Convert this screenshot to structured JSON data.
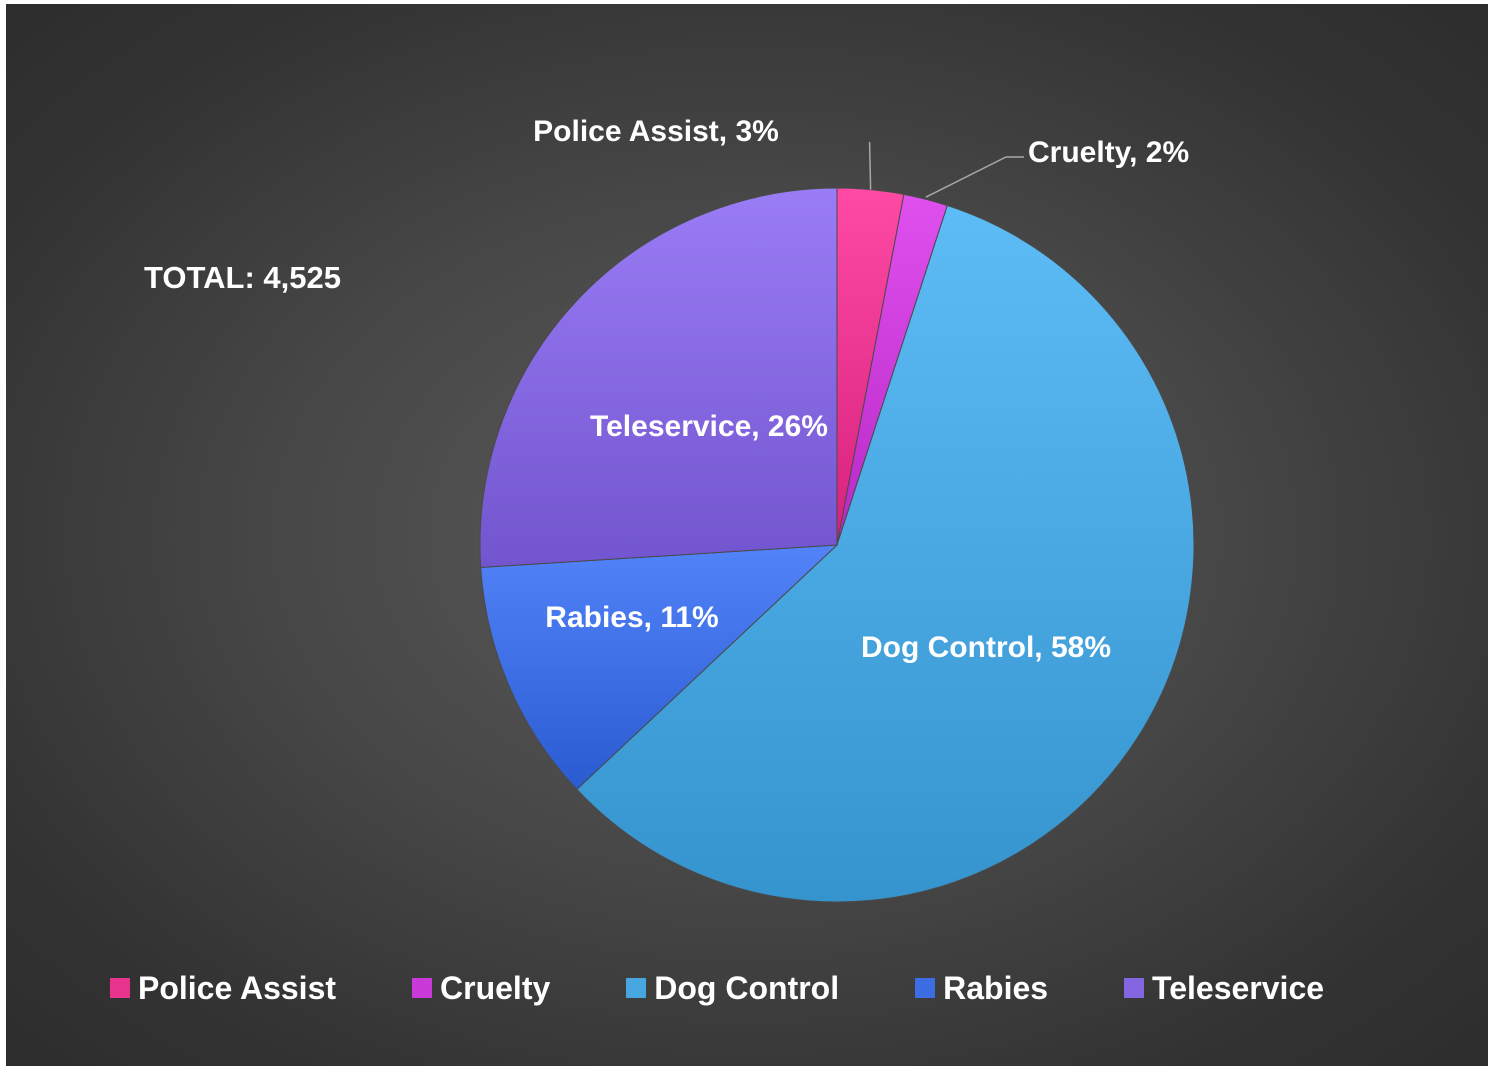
{
  "chart_data": {
    "type": "pie",
    "title": "",
    "annotation": "TOTAL: 4,525",
    "categories": [
      "Police Assist",
      "Cruelty",
      "Dog Control",
      "Rabies",
      "Teleservice"
    ],
    "values": [
      3,
      2,
      58,
      11,
      26
    ],
    "unit": "%",
    "data_labels": [
      "Police Assist, 3%",
      "Cruelty, 2%",
      "Dog Control, 58%",
      "Rabies, 11%",
      "Teleservice, 26%"
    ],
    "colors": [
      "#e8348f",
      "#c93ad8",
      "#47a6e0",
      "#3c6de3",
      "#8467e0"
    ],
    "legend": {
      "position": "bottom",
      "entries": [
        "Police Assist",
        "Cruelty",
        "Dog Control",
        "Rabies",
        "Teleservice"
      ]
    }
  }
}
